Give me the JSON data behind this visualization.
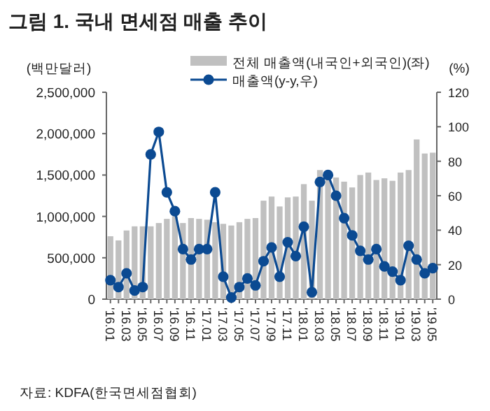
{
  "chart_data": {
    "type": "bar",
    "title": "그림 1. 국내 면세점 매출 추이",
    "ylabel": "(백만달러)",
    "y2label": "(%)",
    "categories": [
      "'16.01",
      null,
      "'16.03",
      null,
      "'16.05",
      null,
      "'16.07",
      null,
      "'16.09",
      null,
      "'16.11",
      null,
      "'17.01",
      null,
      "'17.03",
      null,
      "'17.05",
      null,
      "'17.07",
      null,
      "'17.09",
      null,
      "'17.11",
      null,
      "'18.01",
      null,
      "'18.03",
      null,
      "'18.05",
      null,
      "'18.07",
      null,
      "'18.09",
      null,
      "'18.11",
      null,
      "'19.01",
      null,
      "'19.03",
      null,
      "'19.05"
    ],
    "series": [
      {
        "name": "전체 매출액(내국인+외국인)(좌)",
        "color": "#c0c0c0",
        "values": [
          760000,
          710000,
          830000,
          880000,
          880000,
          880000,
          920000,
          970000,
          1000000,
          920000,
          980000,
          970000,
          960000,
          930000,
          910000,
          890000,
          930000,
          970000,
          980000,
          1190000,
          1240000,
          1120000,
          1230000,
          1240000,
          1390000,
          1190000,
          1560000,
          1510000,
          1470000,
          1420000,
          1350000,
          1500000,
          1530000,
          1440000,
          1460000,
          1430000,
          1530000,
          1560000,
          1930000,
          1760000,
          1770000
        ]
      },
      {
        "name": "매출액(y-y,우)",
        "type": "line",
        "axis": "y2",
        "color": "#0b4a92",
        "marker": "circle",
        "values": [
          11,
          7,
          15,
          5,
          7,
          84,
          97,
          62,
          51,
          29,
          23,
          29,
          29,
          62,
          13,
          1,
          7,
          12,
          8,
          22,
          30,
          13,
          33,
          25,
          42,
          4,
          68,
          72,
          60,
          47,
          37,
          28,
          23,
          29,
          19,
          16,
          11,
          31,
          23,
          15,
          18
        ]
      }
    ],
    "ylim": [
      0,
      2500000
    ],
    "yticks": [
      {
        "value": 0,
        "label": "0"
      },
      {
        "value": 500000,
        "label": "500,000"
      },
      {
        "value": 1000000,
        "label": "1,000,000"
      },
      {
        "value": 1500000,
        "label": "1,500,000"
      },
      {
        "value": 2000000,
        "label": "2,000,000"
      },
      {
        "value": 2500000,
        "label": "2,500,000"
      }
    ],
    "y2lim": [
      0,
      120
    ],
    "y2ticks": [
      0,
      20,
      40,
      60,
      80,
      100,
      120
    ],
    "legend": "top",
    "grid": false,
    "annotations": [
      "자료: KDFA(한국면세점협회)"
    ]
  }
}
